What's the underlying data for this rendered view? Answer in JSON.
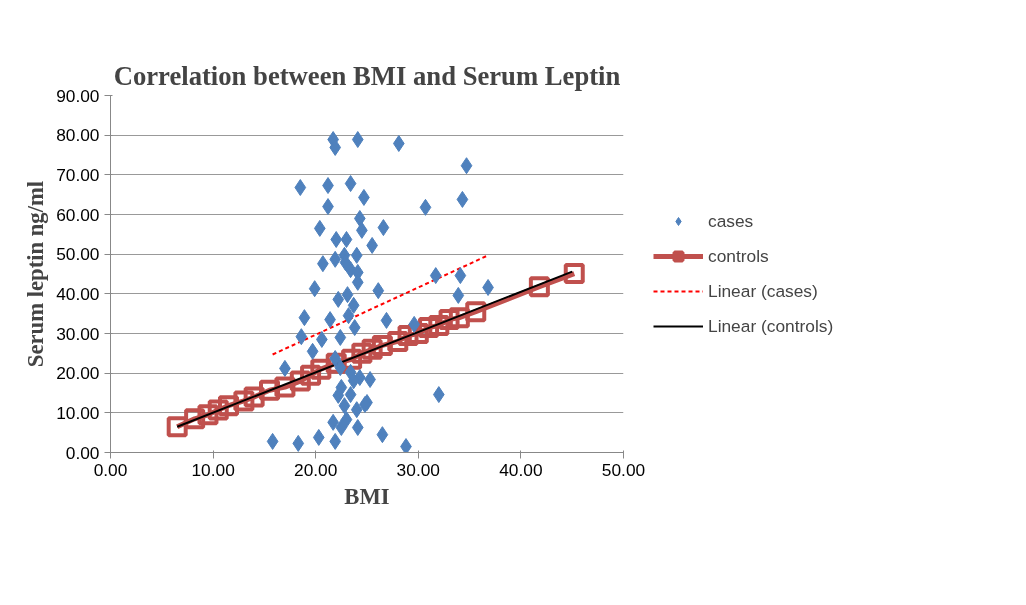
{
  "chart_data": {
    "type": "scatter",
    "title": "Correlation between BMI and Serum Leptin",
    "xlabel": "BMI",
    "ylabel": "Serum leptin ng/ml",
    "xlim": [
      0,
      50
    ],
    "ylim": [
      0,
      90
    ],
    "xticks": [
      {
        "value": 0,
        "label": "0.00"
      },
      {
        "value": 10,
        "label": "10.00"
      },
      {
        "value": 20,
        "label": "20.00"
      },
      {
        "value": 30,
        "label": "30.00"
      },
      {
        "value": 40,
        "label": "40.00"
      },
      {
        "value": 50,
        "label": "50.00"
      }
    ],
    "yticks": [
      {
        "value": 0,
        "label": "0.00"
      },
      {
        "value": 10,
        "label": "10.00"
      },
      {
        "value": 20,
        "label": "20.00"
      },
      {
        "value": 30,
        "label": "30.00"
      },
      {
        "value": 40,
        "label": "40.00"
      },
      {
        "value": 50,
        "label": "50.00"
      },
      {
        "value": 60,
        "label": "60.00"
      },
      {
        "value": 70,
        "label": "70.00"
      },
      {
        "value": 80,
        "label": "80.00"
      },
      {
        "value": 90,
        "label": "90.00"
      }
    ],
    "grid": "y",
    "legend": "right",
    "series": [
      {
        "name": "cases",
        "marker": "diamond",
        "color": "#4f81bd",
        "x": [
          15.8,
          18.3,
          20.3,
          21.9,
          26.5,
          28.8,
          21.7,
          24.1,
          21.9,
          28.1,
          34.7,
          18.5,
          21.2,
          23.4,
          24.7,
          34.3,
          21.2,
          30.7,
          20.4,
          24.3,
          24.5,
          26.6,
          22.0,
          23.0,
          25.5,
          22.8,
          24.0,
          20.7,
          21.9,
          22.9,
          23.4,
          24.1,
          24.1,
          31.7,
          34.1,
          36.8,
          19.9,
          26.1,
          33.9,
          23.1,
          22.2,
          23.7,
          18.9,
          21.4,
          23.2,
          26.9,
          29.6,
          23.8,
          18.6,
          20.6,
          22.4,
          19.7,
          21.9,
          17.0,
          22.4,
          23.4,
          24.3,
          25.3,
          22.5,
          22.2,
          23.4,
          25.0,
          32.0,
          22.8,
          24.0,
          23.0,
          21.7,
          24.1,
          22.5,
          24.8,
          23.7
        ],
        "values": [
          2.8,
          2.3,
          3.8,
          2.8,
          4.5,
          1.5,
          78.9,
          78.9,
          76.9,
          77.9,
          72.3,
          66.8,
          67.3,
          67.8,
          64.3,
          63.8,
          62.0,
          61.8,
          56.5,
          59.0,
          56.0,
          56.7,
          53.7,
          53.7,
          52.2,
          49.7,
          49.7,
          47.6,
          48.7,
          47.9,
          46.1,
          45.4,
          42.9,
          44.6,
          44.6,
          41.6,
          41.3,
          40.8,
          39.6,
          39.8,
          38.6,
          37.1,
          34.0,
          33.5,
          34.5,
          33.3,
          32.3,
          31.5,
          29.2,
          28.5,
          29.0,
          25.5,
          23.7,
          21.2,
          21.4,
          20.2,
          18.9,
          18.4,
          16.4,
          14.4,
          14.6,
          12.6,
          14.6,
          11.8,
          10.8,
          8.3,
          7.6,
          6.3,
          6.3,
          12.1,
          18.1
        ]
      },
      {
        "name": "controls",
        "type": "line",
        "marker": "square",
        "color": "#c0504d",
        "line_style": "solid",
        "x": [
          6.5,
          8.2,
          9.5,
          10.5,
          11.5,
          13.0,
          14.0,
          15.5,
          17.0,
          18.5,
          19.5,
          20.5,
          22.0,
          23.5,
          24.5,
          25.5,
          26.5,
          28.0,
          29.0,
          30.0,
          31.0,
          32.0,
          33.0,
          34.0,
          35.6,
          41.8,
          45.2
        ],
        "values": [
          6.5,
          8.5,
          9.5,
          10.7,
          11.8,
          13.0,
          14.0,
          15.7,
          16.5,
          18.0,
          19.5,
          21.0,
          22.5,
          23.5,
          25.0,
          26.0,
          27.0,
          28.0,
          29.5,
          30.0,
          31.5,
          32.0,
          33.5,
          34.0,
          35.5,
          41.8,
          45.1
        ]
      },
      {
        "name": "Linear (cases)",
        "type": "line",
        "color": "#ff0000",
        "line_style": "dashed",
        "x": [
          15.8,
          36.8
        ],
        "values": [
          24.7,
          49.7
        ]
      },
      {
        "name": "Linear (controls)",
        "type": "line",
        "color": "#000000",
        "line_style": "solid",
        "x": [
          6.5,
          45.0
        ],
        "values": [
          6.5,
          45.6
        ]
      }
    ]
  }
}
